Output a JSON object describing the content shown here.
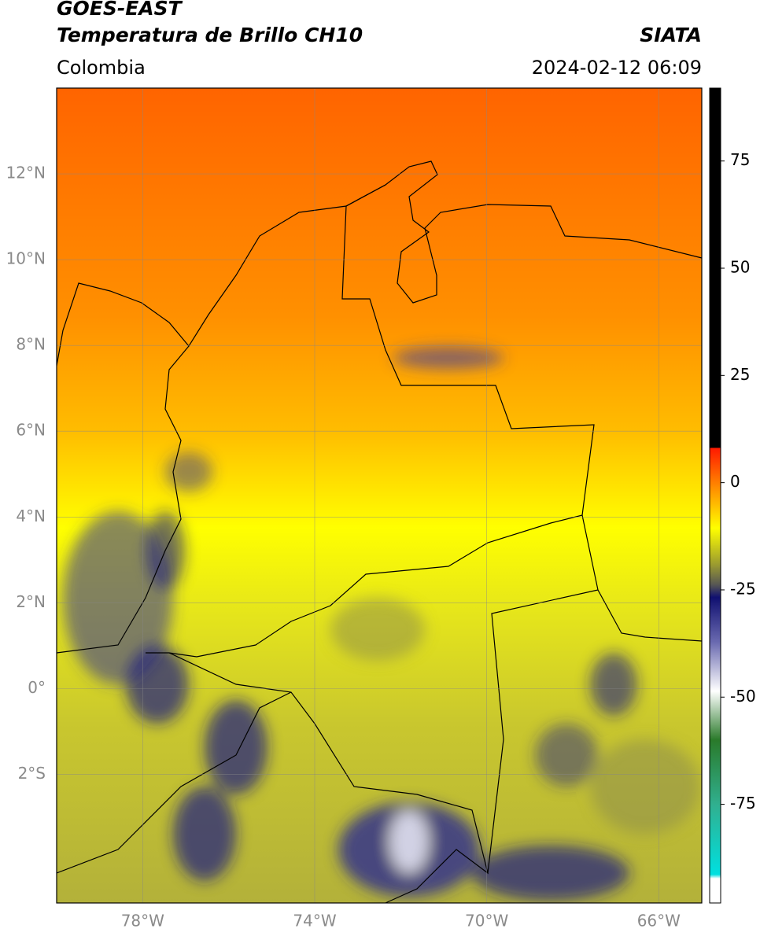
{
  "header": {
    "title": "GOES-EAST",
    "subtitle": "Temperatura de Brillo CH10",
    "source": "SIATA",
    "region": "Colombia",
    "datetime": "2024-02-12 06:09"
  },
  "map": {
    "xlim": [
      -80,
      -65
    ],
    "ylim": [
      -5,
      14
    ],
    "grid": true,
    "xticks": [
      {
        "value": -78,
        "label": "78°W"
      },
      {
        "value": -74,
        "label": "74°W"
      },
      {
        "value": -70,
        "label": "70°W"
      },
      {
        "value": -66,
        "label": "66°W"
      }
    ],
    "yticks": [
      {
        "value": 12,
        "label": "12°N"
      },
      {
        "value": 10,
        "label": "10°N"
      },
      {
        "value": 8,
        "label": "8°N"
      },
      {
        "value": 6,
        "label": "6°N"
      },
      {
        "value": 4,
        "label": "4°N"
      },
      {
        "value": 2,
        "label": "2°N"
      },
      {
        "value": 0,
        "label": "0°"
      },
      {
        "value": -2,
        "label": "2°S"
      }
    ]
  },
  "colorbar": {
    "lim": [
      -98,
      92
    ],
    "ticks": [
      75,
      50,
      25,
      0,
      -25,
      -50,
      -75
    ]
  }
}
